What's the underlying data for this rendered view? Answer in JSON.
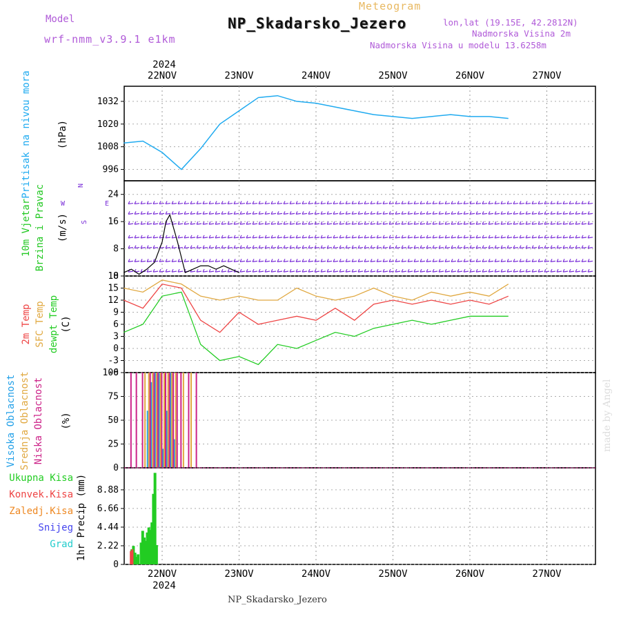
{
  "header": {
    "model_label": "Model",
    "model_name": "wrf-nmm_v3.9.1 e1km",
    "product": "Meteogram",
    "station": "NP_Skadarsko_Jezero",
    "lonlat": "lon,lat (19.15E, 42.2812N)",
    "alt1": "Nadmorska Visina 2m",
    "alt2": "Nadmorska Visina u modelu 13.6258m"
  },
  "footer": {
    "station": "NP_Skadarsko_Jezero",
    "credit": "made by Angel"
  },
  "colors": {
    "pressure": "#1eaaf0",
    "wind_label": "#22c822",
    "temp": "#ee4444",
    "sfc": "#e0a840",
    "dew": "#22cc22",
    "cloud_high": "#22a0e8",
    "cloud_mid": "#e0a840",
    "cloud_low": "#cc2288",
    "rain": "#22cc22",
    "conv": "#ee4444",
    "frz": "#ee8822",
    "snow": "#4444ee",
    "grad": "#22cccc",
    "barb": "#7a2ed8"
  },
  "chart_data": [
    {
      "type": "line",
      "title": "Pritisak na nivou mora",
      "ylabel": "(hPa)",
      "ylim": [
        990,
        1040
      ],
      "yticks": [
        996,
        1008,
        1020,
        1032
      ],
      "x_days": [
        0,
        0.25,
        0.5,
        0.75,
        1.0,
        1.25,
        1.5,
        1.75,
        2.0,
        2.25,
        2.5,
        2.75,
        3.0,
        3.25,
        3.5,
        3.75,
        4.0,
        4.25,
        4.5,
        4.75,
        5.0
      ],
      "values": [
        1010,
        1011,
        1005,
        996,
        1007,
        1020,
        1027,
        1034,
        1035,
        1032,
        1031,
        1029,
        1027,
        1025,
        1024,
        1023,
        1024,
        1025,
        1024,
        1024,
        1023
      ]
    },
    {
      "type": "line",
      "title": "10m Vjetar Brzina i Pravac",
      "ylabel": "(m/s)",
      "ylim": [
        0,
        28
      ],
      "yticks": [
        0,
        8,
        16,
        24
      ],
      "compass": {
        "n": "N",
        "w": "W",
        "e": "E",
        "s": "S"
      },
      "x_days": [
        0,
        0.1,
        0.2,
        0.3,
        0.4,
        0.5,
        0.55,
        0.6,
        0.7,
        0.8,
        0.9,
        1.0,
        1.1,
        1.2,
        1.3,
        1.4,
        1.5
      ],
      "values": [
        1,
        2,
        0.5,
        2,
        4,
        10,
        16,
        18,
        10,
        1,
        2,
        3,
        3,
        2,
        3,
        2,
        1
      ]
    },
    {
      "type": "line",
      "title": [
        "2m Temp",
        "SFC Temp",
        "dewpt Temp"
      ],
      "ylabel": "(C)",
      "ylim": [
        -6,
        18
      ],
      "yticks": [
        -6,
        -3,
        0,
        3,
        6,
        9,
        12,
        15,
        18
      ],
      "x_days": [
        0,
        0.25,
        0.5,
        0.75,
        1.0,
        1.25,
        1.5,
        1.75,
        2.0,
        2.25,
        2.5,
        2.75,
        3.0,
        3.25,
        3.5,
        3.75,
        4.0,
        4.25,
        4.5,
        4.75,
        5.0
      ],
      "series": [
        {
          "name": "2m Temp",
          "values": [
            12,
            10,
            16,
            15,
            7,
            4,
            9,
            6,
            7,
            8,
            7,
            10,
            7,
            11,
            12,
            11,
            12,
            11,
            12,
            11,
            13
          ]
        },
        {
          "name": "SFC Temp",
          "values": [
            15,
            14,
            17,
            16,
            13,
            12,
            13,
            12,
            12,
            15,
            13,
            12,
            13,
            15,
            13,
            12,
            14,
            13,
            14,
            13,
            16
          ]
        },
        {
          "name": "dewpt Temp",
          "values": [
            4,
            6,
            13,
            14,
            1,
            -3,
            -2,
            -4,
            1,
            0,
            2,
            4,
            3,
            5,
            6,
            7,
            6,
            7,
            8,
            8,
            8
          ]
        }
      ]
    },
    {
      "type": "bar",
      "title": [
        "Visoka Oblacnost",
        "Srednja Oblacnost",
        "Niska Oblacnost"
      ],
      "ylabel": "(%)",
      "ylim": [
        0,
        100
      ],
      "yticks": [
        0,
        25,
        50,
        75,
        100
      ],
      "x_days": [
        0.05,
        0.12,
        0.2,
        0.25,
        0.3,
        0.35,
        0.4,
        0.45,
        0.5,
        0.55,
        0.6,
        0.65,
        0.7,
        0.75,
        0.8,
        0.85,
        0.9
      ],
      "series": [
        {
          "name": "Visoka Oblacnost",
          "values": [
            0,
            0,
            0,
            0,
            60,
            90,
            100,
            100,
            20,
            60,
            100,
            30,
            0,
            0,
            0,
            0,
            0
          ]
        },
        {
          "name": "Srednja Oblacnost",
          "values": [
            0,
            0,
            0,
            100,
            100,
            100,
            100,
            100,
            100,
            100,
            100,
            100,
            0,
            100,
            0,
            100,
            0
          ]
        },
        {
          "name": "Niska Oblacnost",
          "values": [
            100,
            100,
            100,
            0,
            100,
            100,
            100,
            100,
            100,
            100,
            100,
            100,
            100,
            0,
            100,
            0,
            100
          ]
        }
      ]
    },
    {
      "type": "bar",
      "title": [
        "Ukupna Kisa",
        "Konvek.Kisa",
        "Zaledj.Kisa",
        "Snijeg",
        "Grad"
      ],
      "ylabel": "1hr Precip (mm)",
      "ylim": [
        0,
        11.5
      ],
      "yticks": [
        0,
        2.22,
        4.44,
        6.66,
        8.88
      ],
      "x_days": [
        0.08,
        0.1,
        0.12,
        0.14,
        0.16,
        0.2,
        0.22,
        0.24,
        0.26,
        0.28,
        0.3,
        0.32,
        0.34,
        0.36,
        0.38,
        0.4,
        0.42,
        0.44,
        0.46
      ],
      "series": [
        {
          "name": "Ukupna Kisa",
          "values": [
            1.8,
            2.2,
            1.4,
            0.9,
            1.2,
            2.6,
            4.0,
            3.2,
            2.8,
            3.8,
            4.4,
            4.1,
            5.0,
            8.4,
            10.9,
            2.3,
            0,
            0,
            0
          ]
        },
        {
          "name": "Konvek.Kisa",
          "values": [
            1.6,
            1.8,
            0,
            0,
            0,
            0,
            0,
            0,
            0,
            0,
            0,
            0,
            0,
            0,
            0,
            0,
            0,
            0,
            0
          ]
        }
      ]
    },
    {
      "type": "axis",
      "year": "2024",
      "days": [
        "22NOV",
        "23NOV",
        "24NOV",
        "25NOV",
        "26NOV",
        "27NOV"
      ]
    }
  ]
}
